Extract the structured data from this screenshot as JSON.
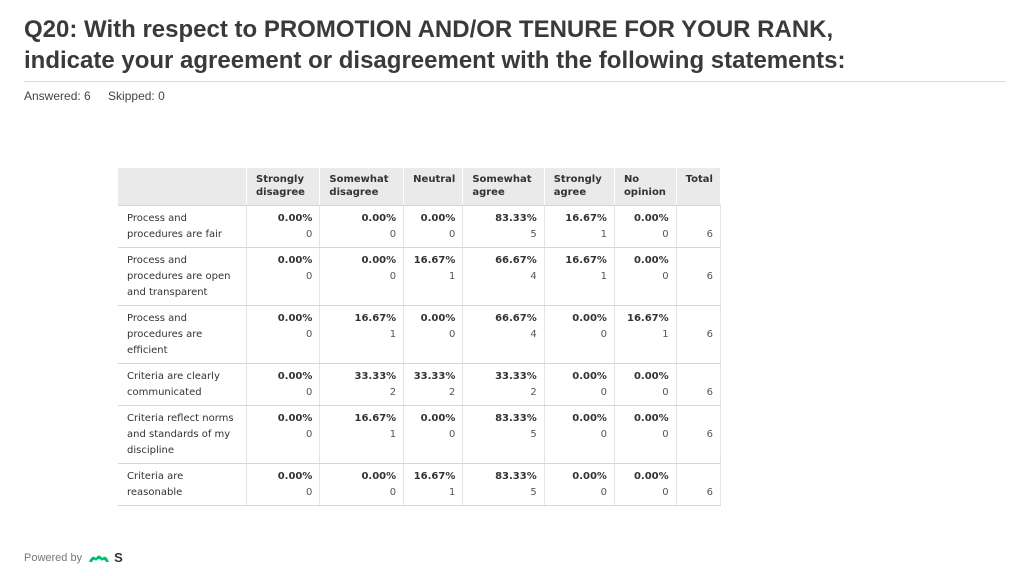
{
  "title_line1": "Q20: With respect to PROMOTION AND/OR TENURE FOR YOUR RANK,",
  "title_line2": "indicate your agreement or disagreement with the following statements:",
  "answered": "Answered: 6",
  "skipped": "Skipped: 0",
  "footer": {
    "powered_by": "Powered by",
    "logo_text": "S"
  },
  "colors": {
    "header_bg": "#eaeaea",
    "logo_green": "#00bf6f"
  },
  "chart_data": {
    "type": "table",
    "columns": [
      "Strongly disagree",
      "Somewhat disagree",
      "Neutral",
      "Somewhat agree",
      "Strongly agree",
      "No opinion",
      "Total"
    ],
    "rows": [
      {
        "label": "Process and procedures are fair",
        "cells": [
          [
            "0.00%",
            "0"
          ],
          [
            "0.00%",
            "0"
          ],
          [
            "0.00%",
            "0"
          ],
          [
            "83.33%",
            "5"
          ],
          [
            "16.67%",
            "1"
          ],
          [
            "0.00%",
            "0"
          ]
        ],
        "total": "6"
      },
      {
        "label": "Process and procedures are open and transparent",
        "cells": [
          [
            "0.00%",
            "0"
          ],
          [
            "0.00%",
            "0"
          ],
          [
            "16.67%",
            "1"
          ],
          [
            "66.67%",
            "4"
          ],
          [
            "16.67%",
            "1"
          ],
          [
            "0.00%",
            "0"
          ]
        ],
        "total": "6"
      },
      {
        "label": "Process and procedures are efficient",
        "cells": [
          [
            "0.00%",
            "0"
          ],
          [
            "16.67%",
            "1"
          ],
          [
            "0.00%",
            "0"
          ],
          [
            "66.67%",
            "4"
          ],
          [
            "0.00%",
            "0"
          ],
          [
            "16.67%",
            "1"
          ]
        ],
        "total": "6"
      },
      {
        "label": "Criteria are clearly communicated",
        "cells": [
          [
            "0.00%",
            "0"
          ],
          [
            "33.33%",
            "2"
          ],
          [
            "33.33%",
            "2"
          ],
          [
            "33.33%",
            "2"
          ],
          [
            "0.00%",
            "0"
          ],
          [
            "0.00%",
            "0"
          ]
        ],
        "total": "6"
      },
      {
        "label": "Criteria reflect norms and standards of my discipline",
        "cells": [
          [
            "0.00%",
            "0"
          ],
          [
            "16.67%",
            "1"
          ],
          [
            "0.00%",
            "0"
          ],
          [
            "83.33%",
            "5"
          ],
          [
            "0.00%",
            "0"
          ],
          [
            "0.00%",
            "0"
          ]
        ],
        "total": "6"
      },
      {
        "label": "Criteria are reasonable",
        "cells": [
          [
            "0.00%",
            "0"
          ],
          [
            "0.00%",
            "0"
          ],
          [
            "16.67%",
            "1"
          ],
          [
            "83.33%",
            "5"
          ],
          [
            "0.00%",
            "0"
          ],
          [
            "0.00%",
            "0"
          ]
        ],
        "total": "6"
      }
    ]
  }
}
